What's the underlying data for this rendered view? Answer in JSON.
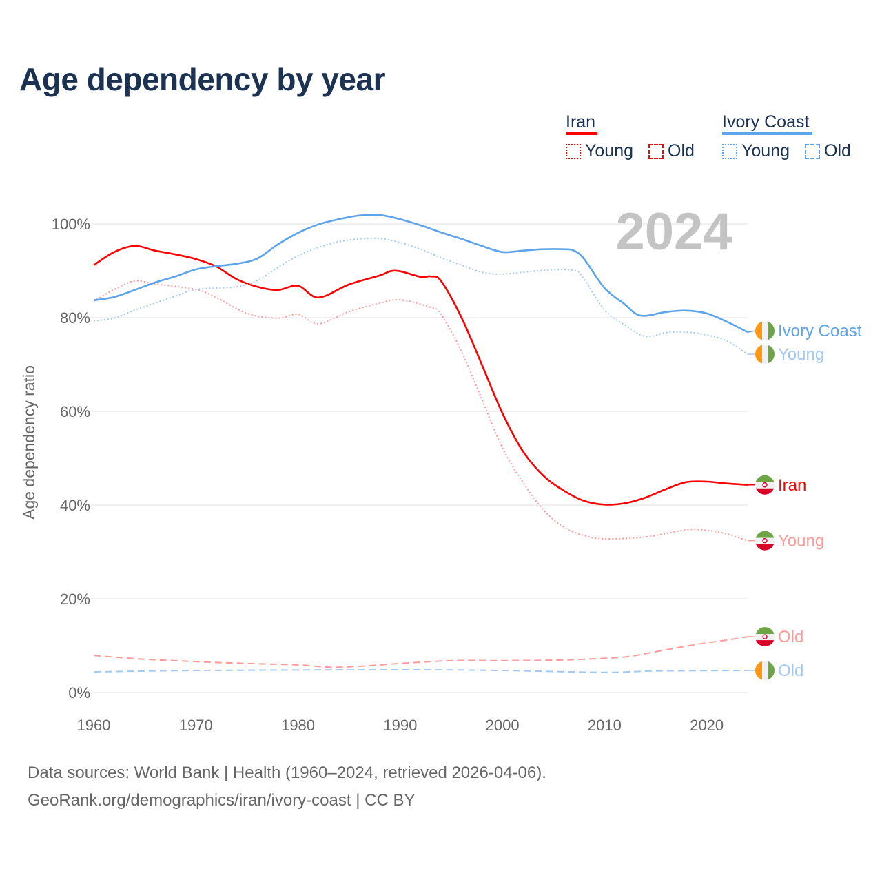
{
  "title": "Age dependency by year",
  "legend": {
    "groups": [
      {
        "name": "Iran",
        "color": "#ff0000",
        "young_label": "Young",
        "old_label": "Old"
      },
      {
        "name": "Ivory Coast",
        "color": "#5ba4ec",
        "young_label": "Young",
        "old_label": "Old"
      }
    ]
  },
  "footer": {
    "line1": "Data sources: World Bank | Health (1960–2024, retrieved 2026-04-06).",
    "line2": "GeoRank.org/demographics/iran/ivory-coast | CC BY"
  },
  "chart_data": {
    "type": "line",
    "title": "Age dependency by year",
    "year_watermark": "2024",
    "xlabel": "",
    "ylabel": "Age dependency ratio",
    "xlim": [
      1960,
      2024
    ],
    "ylim": [
      0,
      100
    ],
    "x_ticks": [
      "1960",
      "1970",
      "1980",
      "1990",
      "2000",
      "2010",
      "2020"
    ],
    "x_tick_values": [
      1960,
      1970,
      1980,
      1990,
      2000,
      2010,
      2020
    ],
    "y_ticks": [
      "0%",
      "20%",
      "40%",
      "60%",
      "80%",
      "100%"
    ],
    "y_tick_values": [
      0,
      20,
      40,
      60,
      80,
      100
    ],
    "grid": true,
    "series": [
      {
        "name": "Iran",
        "end_label": "Iran",
        "country": "iran",
        "color": "#ff0000",
        "style": "solid",
        "points": [
          [
            1960,
            91.2
          ],
          [
            1962,
            94
          ],
          [
            1964,
            95.3
          ],
          [
            1966,
            94.3
          ],
          [
            1968,
            93.5
          ],
          [
            1970,
            92.5
          ],
          [
            1972,
            90.9
          ],
          [
            1974,
            88.2
          ],
          [
            1976,
            86.6
          ],
          [
            1978,
            85.9
          ],
          [
            1980,
            86.8
          ],
          [
            1982,
            84.3
          ],
          [
            1985,
            87.1
          ],
          [
            1988,
            89
          ],
          [
            1989,
            89.9
          ],
          [
            1990,
            89.9
          ],
          [
            1992,
            88.7
          ],
          [
            1993,
            88.8
          ],
          [
            1994,
            87.8
          ],
          [
            1996,
            80
          ],
          [
            1998,
            69.9
          ],
          [
            2000,
            59.6
          ],
          [
            2002,
            51.5
          ],
          [
            2004,
            46.3
          ],
          [
            2006,
            43.1
          ],
          [
            2008,
            40.9
          ],
          [
            2010,
            40.1
          ],
          [
            2012,
            40.4
          ],
          [
            2014,
            41.6
          ],
          [
            2016,
            43.4
          ],
          [
            2018,
            44.9
          ],
          [
            2020,
            45
          ],
          [
            2022,
            44.6
          ],
          [
            2024,
            44.3
          ]
        ]
      },
      {
        "name": "Iran Young",
        "end_label": "Young",
        "country": "iran",
        "color": "#ff9a9a",
        "style": "dotted",
        "points": [
          [
            1960,
            83.5
          ],
          [
            1962,
            86
          ],
          [
            1964,
            87.8
          ],
          [
            1966,
            87.2
          ],
          [
            1970,
            86
          ],
          [
            1972,
            84.3
          ],
          [
            1975,
            80.9
          ],
          [
            1978,
            79.9
          ],
          [
            1980,
            80.7
          ],
          [
            1982,
            78.7
          ],
          [
            1985,
            81.3
          ],
          [
            1988,
            83.1
          ],
          [
            1990,
            83.8
          ],
          [
            1993,
            82.2
          ],
          [
            1994,
            80.7
          ],
          [
            1996,
            72.8
          ],
          [
            1998,
            62.5
          ],
          [
            2000,
            52.2
          ],
          [
            2002,
            44.9
          ],
          [
            2004,
            39
          ],
          [
            2006,
            35.3
          ],
          [
            2008,
            33.5
          ],
          [
            2010,
            32.8
          ],
          [
            2014,
            33.2
          ],
          [
            2018,
            34.7
          ],
          [
            2020,
            34.6
          ],
          [
            2022,
            33.8
          ],
          [
            2024,
            32.4
          ]
        ]
      },
      {
        "name": "Iran Old",
        "end_label": "Old",
        "country": "iran",
        "color": "#ff9a9a",
        "style": "dashed",
        "points": [
          [
            1960,
            7.9
          ],
          [
            1965,
            7.1
          ],
          [
            1970,
            6.6
          ],
          [
            1975,
            6.2
          ],
          [
            1980,
            5.9
          ],
          [
            1983,
            5.4
          ],
          [
            1986,
            5.6
          ],
          [
            1990,
            6.2
          ],
          [
            1995,
            6.8
          ],
          [
            2000,
            6.8
          ],
          [
            2005,
            6.9
          ],
          [
            2008,
            7.1
          ],
          [
            2012,
            7.6
          ],
          [
            2015,
            8.7
          ],
          [
            2018,
            9.9
          ],
          [
            2020,
            10.6
          ],
          [
            2022,
            11.2
          ],
          [
            2024,
            11.9
          ]
        ]
      },
      {
        "name": "Ivory Coast",
        "end_label": "Ivory Coast",
        "country": "ivory-coast",
        "color": "#5ba4ec",
        "style": "solid",
        "points": [
          [
            1960,
            83.7
          ],
          [
            1962,
            84.4
          ],
          [
            1964,
            85.9
          ],
          [
            1966,
            87.5
          ],
          [
            1968,
            88.8
          ],
          [
            1970,
            90.3
          ],
          [
            1972,
            91
          ],
          [
            1974,
            91.5
          ],
          [
            1976,
            92.6
          ],
          [
            1978,
            95.6
          ],
          [
            1980,
            98.1
          ],
          [
            1982,
            99.9
          ],
          [
            1984,
            101
          ],
          [
            1986,
            101.8
          ],
          [
            1988,
            101.9
          ],
          [
            1990,
            101
          ],
          [
            1992,
            99.7
          ],
          [
            1994,
            98.2
          ],
          [
            1996,
            96.8
          ],
          [
            1998,
            95.3
          ],
          [
            2000,
            94
          ],
          [
            2002,
            94.3
          ],
          [
            2004,
            94.6
          ],
          [
            2006,
            94.6
          ],
          [
            2007,
            94.3
          ],
          [
            2008,
            92.5
          ],
          [
            2010,
            86.3
          ],
          [
            2012,
            82.8
          ],
          [
            2013,
            80.9
          ],
          [
            2014,
            80.4
          ],
          [
            2016,
            81.2
          ],
          [
            2018,
            81.5
          ],
          [
            2020,
            80.9
          ],
          [
            2022,
            79.1
          ],
          [
            2024,
            76.9
          ]
        ]
      },
      {
        "name": "Ivory Coast Young",
        "end_label": "Young",
        "country": "ivory-coast",
        "color": "#a3c9f2",
        "style": "dotted",
        "points": [
          [
            1960,
            79.3
          ],
          [
            1962,
            79.9
          ],
          [
            1964,
            81.6
          ],
          [
            1966,
            83.1
          ],
          [
            1968,
            84.6
          ],
          [
            1970,
            86
          ],
          [
            1974,
            86.6
          ],
          [
            1976,
            87.9
          ],
          [
            1978,
            90.7
          ],
          [
            1980,
            93.2
          ],
          [
            1982,
            95
          ],
          [
            1984,
            96.2
          ],
          [
            1986,
            96.8
          ],
          [
            1988,
            96.9
          ],
          [
            1990,
            96
          ],
          [
            1992,
            94.6
          ],
          [
            1994,
            92.8
          ],
          [
            1996,
            91.2
          ],
          [
            1998,
            89.7
          ],
          [
            2000,
            89.3
          ],
          [
            2004,
            90.1
          ],
          [
            2007,
            90.1
          ],
          [
            2008,
            88.2
          ],
          [
            2010,
            81.6
          ],
          [
            2012,
            78.4
          ],
          [
            2014,
            76
          ],
          [
            2016,
            76.8
          ],
          [
            2018,
            76.9
          ],
          [
            2020,
            76.3
          ],
          [
            2022,
            75
          ],
          [
            2024,
            72.2
          ]
        ]
      },
      {
        "name": "Ivory Coast Old",
        "end_label": "Old",
        "country": "ivory-coast",
        "color": "#a3c9f2",
        "style": "dashed",
        "points": [
          [
            1960,
            4.4
          ],
          [
            1970,
            4.7
          ],
          [
            1990,
            4.85
          ],
          [
            2000,
            4.7
          ],
          [
            2010,
            4.3
          ],
          [
            2015,
            4.6
          ],
          [
            2024,
            4.7
          ]
        ]
      }
    ]
  }
}
